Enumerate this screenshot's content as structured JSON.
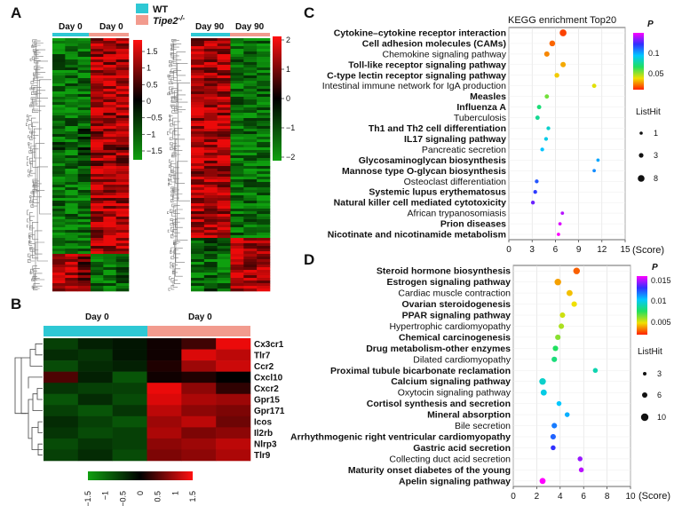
{
  "panel_labels": [
    "A",
    "B",
    "C",
    "D"
  ],
  "legend_groups": [
    {
      "label": "WT",
      "color": "#2ec8d4"
    },
    {
      "label": "Tipe2",
      "sup": "-/-",
      "color": "#f29b8e"
    }
  ],
  "colors": {
    "wt": "#2ec8d4",
    "ko": "#f29b8e",
    "high": "#e2001a",
    "low": "#1a8a1a",
    "mid": "#000000"
  },
  "chart_data": [
    {
      "type": "heatmap",
      "id": "heatmap-day0",
      "panel": "A",
      "groups": [
        "Day 0",
        "Day 0"
      ],
      "colorbar_ticks": [
        "1.5",
        "1",
        "0.5",
        "0",
        "−0.5",
        "−1",
        "−1.5"
      ],
      "range": [
        -1.5,
        1.5
      ]
    },
    {
      "type": "heatmap",
      "id": "heatmap-day90",
      "panel": "A",
      "groups": [
        "Day 90",
        "Day 90"
      ],
      "colorbar_ticks": [
        "2",
        "1",
        "0",
        "−1",
        "−2"
      ],
      "range": [
        -2,
        2
      ]
    },
    {
      "type": "heatmap",
      "id": "heatmap-genes",
      "panel": "B",
      "groups": [
        "Day 0",
        "Day 0"
      ],
      "genes": [
        "Cx3cr1",
        "Tlr7",
        "Ccr2",
        "Cxcl10",
        "Cxcr2",
        "Gpr15",
        "Gpr171",
        "Icos",
        "Il2rb",
        "Nlrp3",
        "Tlr9"
      ],
      "colorbar_ticks": [
        "−1.5",
        "−1",
        "−0.5",
        "0",
        "0.5",
        "1",
        "1.5"
      ],
      "values": [
        [
          -0.6,
          -0.3,
          -0.2,
          0.1,
          0.4,
          1.6
        ],
        [
          -0.4,
          -0.5,
          -0.2,
          0.1,
          1.4,
          1.2
        ],
        [
          -0.7,
          -0.4,
          -0.3,
          0.2,
          1.0,
          1.3
        ],
        [
          0.5,
          -0.3,
          -0.8,
          0.1,
          0.2,
          0.0
        ],
        [
          -0.5,
          -0.6,
          -0.6,
          1.6,
          0.9,
          0.3
        ],
        [
          -0.8,
          -0.4,
          -0.7,
          1.4,
          1.1,
          1.0
        ],
        [
          -0.6,
          -0.8,
          -0.5,
          1.2,
          0.9,
          0.8
        ],
        [
          -0.4,
          -0.6,
          -0.8,
          1.0,
          1.2,
          0.7
        ],
        [
          -0.5,
          -0.7,
          -0.6,
          1.1,
          0.8,
          0.9
        ],
        [
          -0.7,
          -0.5,
          -0.6,
          0.9,
          1.0,
          1.2
        ],
        [
          -0.6,
          -0.4,
          -0.7,
          0.8,
          0.9,
          1.1
        ]
      ]
    },
    {
      "type": "scatter",
      "id": "kegg-top20",
      "panel": "C",
      "title": "KEGG enrichment Top20",
      "xlabel": "(Score)",
      "xlim": [
        0,
        15
      ],
      "xticks": [
        0,
        3,
        6,
        9,
        12,
        15
      ],
      "p_label": "P",
      "p_ticks": [
        "0.1",
        "0.05"
      ],
      "size_label": "ListHit",
      "size_ticks": [
        "1",
        "3",
        "8"
      ],
      "terms": [
        {
          "name": "Cytokine–cytokine receptor interaction",
          "score": 7.0,
          "p": 0.005,
          "hits": 8
        },
        {
          "name": "Cell adhesion molecules (CAMs)",
          "score": 5.6,
          "p": 0.01,
          "hits": 6
        },
        {
          "name": "Chemokine signaling pathway",
          "score": 4.9,
          "p": 0.015,
          "hits": 5
        },
        {
          "name": "Toll-like receptor signaling pathway",
          "score": 7.0,
          "p": 0.02,
          "hits": 5
        },
        {
          "name": "C-type lectin receptor signaling pathway",
          "score": 6.2,
          "p": 0.025,
          "hits": 4
        },
        {
          "name": "Intestinal immune network for IgA production",
          "score": 11.0,
          "p": 0.03,
          "hits": 3
        },
        {
          "name": "Measles",
          "score": 4.9,
          "p": 0.045,
          "hits": 3
        },
        {
          "name": "Influenza A",
          "score": 3.9,
          "p": 0.06,
          "hits": 3
        },
        {
          "name": "Tuberculosis",
          "score": 3.7,
          "p": 0.065,
          "hits": 3
        },
        {
          "name": "Th1 and Th2 cell differentiation",
          "score": 5.1,
          "p": 0.075,
          "hits": 2
        },
        {
          "name": "IL17 signaling pathway",
          "score": 4.8,
          "p": 0.08,
          "hits": 2
        },
        {
          "name": "Pancreatic secretion",
          "score": 4.3,
          "p": 0.085,
          "hits": 2
        },
        {
          "name": "Glycosaminoglycan biosynthesis",
          "score": 11.5,
          "p": 0.09,
          "hits": 1
        },
        {
          "name": "Mannose type O-glycan biosynthesis",
          "score": 11.0,
          "p": 0.095,
          "hits": 1
        },
        {
          "name": "Osteoclast differentiation",
          "score": 3.6,
          "p": 0.105,
          "hits": 2
        },
        {
          "name": "Systemic lupus erythematosus",
          "score": 3.4,
          "p": 0.11,
          "hits": 2
        },
        {
          "name": "Natural killer cell mediated cytotoxicity",
          "score": 3.1,
          "p": 0.12,
          "hits": 2
        },
        {
          "name": "African trypanosomiasis",
          "score": 6.9,
          "p": 0.13,
          "hits": 1
        },
        {
          "name": "Prion diseases",
          "score": 6.6,
          "p": 0.135,
          "hits": 1
        },
        {
          "name": "Nicotinate and nicotinamide metabolism",
          "score": 6.4,
          "p": 0.14,
          "hits": 1
        }
      ]
    },
    {
      "type": "scatter",
      "id": "kegg-panel-d",
      "panel": "D",
      "xlabel": "(Score)",
      "xlim": [
        0,
        10
      ],
      "xticks": [
        0,
        2,
        4,
        6,
        8,
        10
      ],
      "p_label": "P",
      "p_ticks": [
        "0.015",
        "0.01",
        "0.005"
      ],
      "size_label": "ListHit",
      "size_ticks": [
        "3",
        "6",
        "10"
      ],
      "terms": [
        {
          "name": "Steroid hormone biosynthesis",
          "score": 5.4,
          "p": 0.001,
          "hits": 6
        },
        {
          "name": "Estrogen signaling pathway",
          "score": 3.8,
          "p": 0.002,
          "hits": 6
        },
        {
          "name": "Cardiac muscle contraction",
          "score": 4.8,
          "p": 0.0025,
          "hits": 5
        },
        {
          "name": "Ovarian steroidogenesis",
          "score": 5.2,
          "p": 0.003,
          "hits": 4
        },
        {
          "name": "PPAR signaling pathway",
          "score": 4.2,
          "p": 0.0035,
          "hits": 4
        },
        {
          "name": "Hypertrophic cardiomyopathy",
          "score": 4.1,
          "p": 0.004,
          "hits": 4
        },
        {
          "name": "Chemical carcinogenesis",
          "score": 3.8,
          "p": 0.0045,
          "hits": 4
        },
        {
          "name": "Drug metabolism-other enzymes",
          "score": 3.6,
          "p": 0.006,
          "hits": 4
        },
        {
          "name": "Dilated cardiomyopathy",
          "score": 3.5,
          "p": 0.0065,
          "hits": 4
        },
        {
          "name": "Proximal tubule bicarbonate reclamation",
          "score": 7.0,
          "p": 0.0075,
          "hits": 3
        },
        {
          "name": "Calcium signaling pathway",
          "score": 2.5,
          "p": 0.008,
          "hits": 6
        },
        {
          "name": "Oxytocin signaling pathway",
          "score": 2.6,
          "p": 0.0085,
          "hits": 5
        },
        {
          "name": "Cortisol synthesis and secretion",
          "score": 3.9,
          "p": 0.009,
          "hits": 3
        },
        {
          "name": "Mineral absorption",
          "score": 4.6,
          "p": 0.0095,
          "hits": 3
        },
        {
          "name": "Bile secretion",
          "score": 3.5,
          "p": 0.0105,
          "hits": 4
        },
        {
          "name": "Arrhythmogenic right ventricular cardiomyopathy",
          "score": 3.4,
          "p": 0.011,
          "hits": 4
        },
        {
          "name": "Gastric acid secretion",
          "score": 3.4,
          "p": 0.012,
          "hits": 3
        },
        {
          "name": "Collecting duct acid secretion",
          "score": 5.7,
          "p": 0.0135,
          "hits": 3
        },
        {
          "name": "Maturity onset diabetes of the young",
          "score": 5.8,
          "p": 0.014,
          "hits": 3
        },
        {
          "name": "Apelin signaling pathway",
          "score": 2.5,
          "p": 0.015,
          "hits": 5
        }
      ]
    }
  ]
}
